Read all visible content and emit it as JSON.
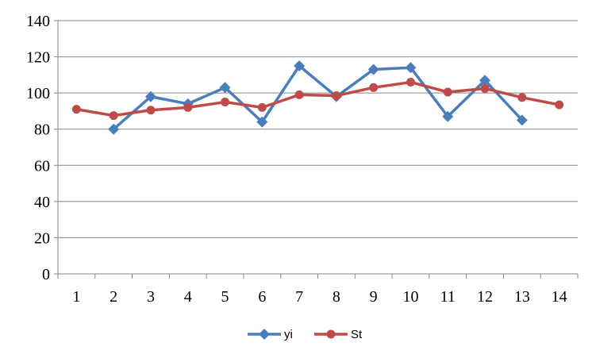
{
  "chart_data": {
    "type": "line",
    "categories": [
      "1",
      "2",
      "3",
      "4",
      "5",
      "6",
      "7",
      "8",
      "9",
      "10",
      "11",
      "12",
      "13",
      "14"
    ],
    "series": [
      {
        "name": "yi",
        "color": "#4A7EBB",
        "marker": "diamond",
        "values": [
          null,
          80,
          98,
          94,
          103,
          84,
          115,
          98,
          113,
          114,
          87,
          107,
          85,
          null
        ]
      },
      {
        "name": "St",
        "color": "#BE4B48",
        "marker": "circle",
        "values": [
          91,
          87.5,
          90.5,
          92,
          95,
          92,
          99,
          98.5,
          103,
          106,
          100.5,
          102.5,
          97.5,
          93.5
        ]
      }
    ],
    "y_ticks": [
      "0",
      "20",
      "40",
      "60",
      "80",
      "100",
      "120",
      "140"
    ],
    "ylim": [
      0,
      140
    ],
    "grid": true,
    "legend": "bottom"
  }
}
